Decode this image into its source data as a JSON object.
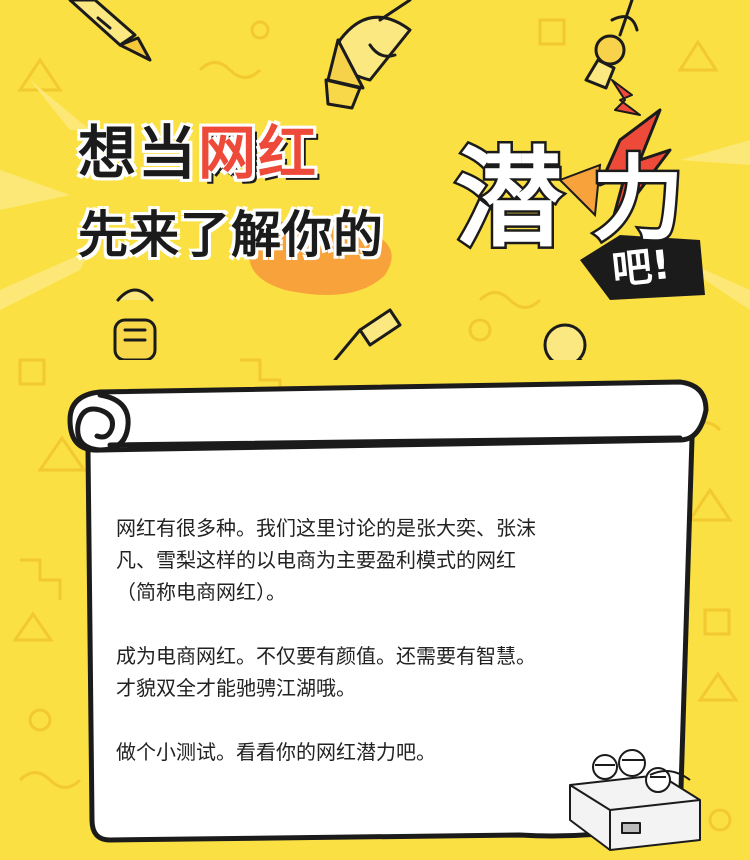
{
  "colors": {
    "background": "#fbe043",
    "stroke": "#1b1b1b",
    "accent_red": "#ee4a3a",
    "accent_orange": "#f7a23a",
    "scroll_fill": "#ffffff",
    "text": "#222222"
  },
  "title": {
    "line1_a": "想当",
    "line1_b": "网红",
    "line2_a": "先来了",
    "line2_b": "解你的",
    "big_word": "潜",
    "power_word": "力",
    "tag": "吧!"
  },
  "icons": [
    "microphone-icon",
    "lightning-icon",
    "scroll-icon",
    "cartoon-people-icon"
  ],
  "intro": {
    "p1_line1": "网红有很多种。我们这里讨论的是张大奕、张沫",
    "p1_line2": "凡、雪梨这样的以电商为主要盈利模式的网红",
    "p1_line3": "（简称电商网红）。",
    "p2_line1": "成为电商网红。不仅要有颜值。还需要有智慧。",
    "p2_line2": "才貌双全才能驰骋江湖哦。",
    "p3_line1": "做个小测试。看看你的网红潜力吧。"
  }
}
